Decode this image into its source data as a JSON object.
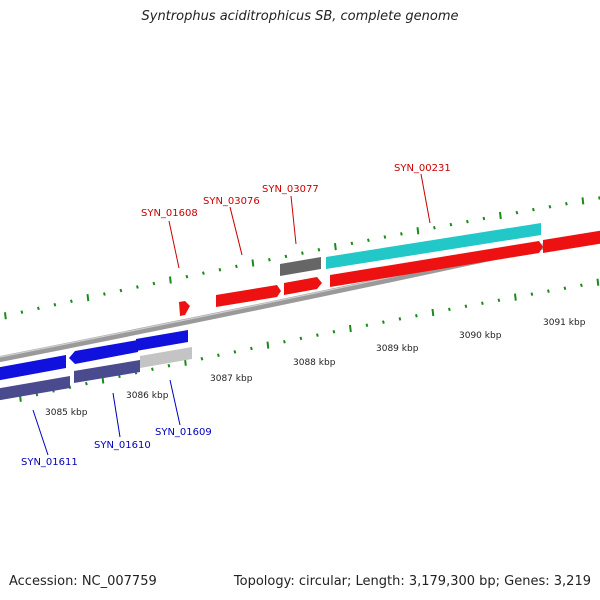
{
  "title": "Syntrophus aciditrophicus SB, complete genome",
  "footer": {
    "accession": "Accession: NC_007759",
    "summary": "Topology: circular; Length: 3,179,300 bp; Genes: 3,219"
  },
  "colors": {
    "backbone": "#808080",
    "tick": "#1a8a1a",
    "forward_red": "#ee1111",
    "cyan": "#22c8c8",
    "dark_gray": "#666666",
    "blue": "#1111dd",
    "slate_blue": "#4a4a8e",
    "light_gray": "#c4c4c4",
    "label_red": "#cc0000",
    "label_blue": "#0000bb"
  },
  "scale_labels": [
    "3085 kbp",
    "3086 kbp",
    "3087 kbp",
    "3088 kbp",
    "3089 kbp",
    "3090 kbp",
    "3091 kbp"
  ],
  "gene_labels": {
    "forward": [
      "SYN_01608",
      "SYN_03076",
      "SYN_03077",
      "SYN_00231"
    ],
    "reverse": [
      "SYN_01611",
      "SYN_01610",
      "SYN_01609"
    ]
  }
}
